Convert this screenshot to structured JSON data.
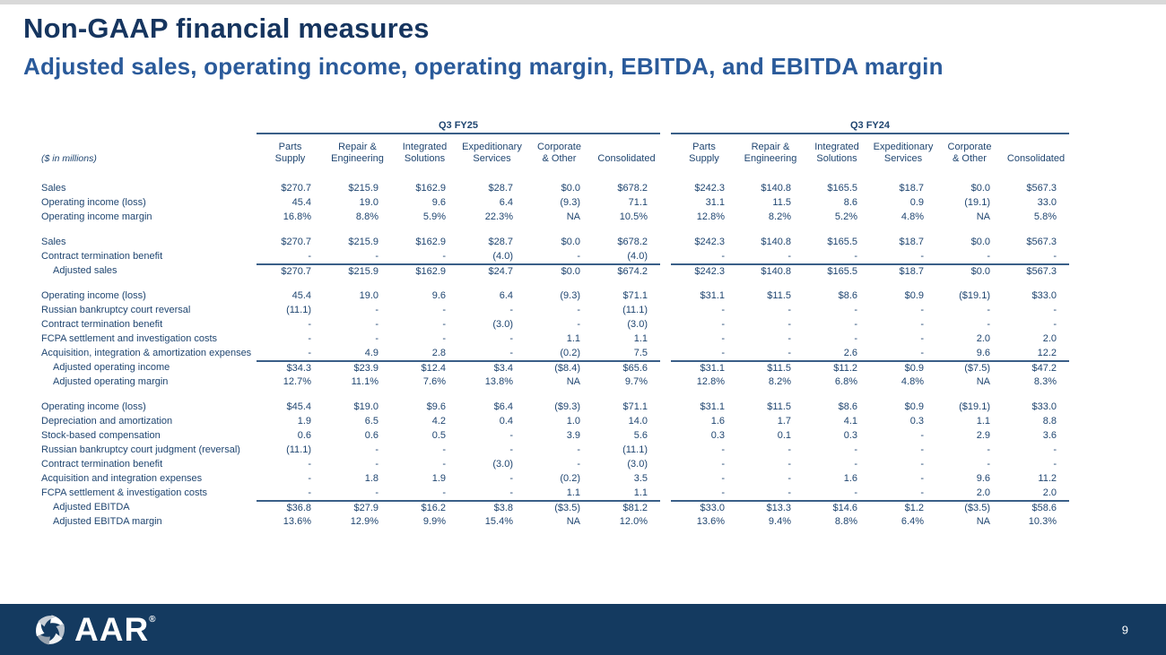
{
  "slide": {
    "title": "Non-GAAP financial measures",
    "subtitle": "Adjusted sales, operating income, operating margin, EBITDA, and EBITDA margin"
  },
  "colors": {
    "title_navy": "#16355f",
    "subtitle_blue": "#2a5a9a",
    "table_text": "#1f4570",
    "rule_line": "#3a5f88",
    "footer_bg": "#143a60"
  },
  "table": {
    "units_note": "($ in millions)",
    "groups": [
      {
        "title": "Q3 FY25",
        "columns": [
          "Parts\nSupply",
          "Repair &\nEngineering",
          "Integrated\nSolutions",
          "Expeditionary\nServices",
          "Corporate\n& Other",
          "Consolidated"
        ]
      },
      {
        "title": "Q3 FY24",
        "columns": [
          "Parts\nSupply",
          "Repair &\nEngineering",
          "Integrated\nSolutions",
          "Expeditionary\nServices",
          "Corporate\n& Other",
          "Consolidated"
        ]
      }
    ],
    "rows": [
      {
        "label": "Sales",
        "indent": false,
        "gap_before": false,
        "rule_above": false,
        "fy25": [
          "$270.7",
          "$215.9",
          "$162.9",
          "$28.7",
          "$0.0",
          "$678.2"
        ],
        "fy24": [
          "$242.3",
          "$140.8",
          "$165.5",
          "$18.7",
          "$0.0",
          "$567.3"
        ]
      },
      {
        "label": "Operating income (loss)",
        "indent": false,
        "gap_before": false,
        "rule_above": false,
        "fy25": [
          "45.4",
          "19.0",
          "9.6",
          "6.4",
          "(9.3)",
          "71.1"
        ],
        "fy24": [
          "31.1",
          "11.5",
          "8.6",
          "0.9",
          "(19.1)",
          "33.0"
        ]
      },
      {
        "label": "Operating income margin",
        "indent": false,
        "gap_before": false,
        "rule_above": false,
        "fy25": [
          "16.8%",
          "8.8%",
          "5.9%",
          "22.3%",
          "NA",
          "10.5%"
        ],
        "fy24": [
          "12.8%",
          "8.2%",
          "5.2%",
          "4.8%",
          "NA",
          "5.8%"
        ]
      },
      {
        "label": "Sales",
        "indent": false,
        "gap_before": true,
        "rule_above": false,
        "fy25": [
          "$270.7",
          "$215.9",
          "$162.9",
          "$28.7",
          "$0.0",
          "$678.2"
        ],
        "fy24": [
          "$242.3",
          "$140.8",
          "$165.5",
          "$18.7",
          "$0.0",
          "$567.3"
        ]
      },
      {
        "label": "Contract termination benefit",
        "indent": false,
        "gap_before": false,
        "rule_above": false,
        "fy25": [
          "-",
          "-",
          "-",
          "(4.0)",
          "-",
          "(4.0)"
        ],
        "fy24": [
          "-",
          "-",
          "-",
          "-",
          "-",
          "-"
        ]
      },
      {
        "label": "Adjusted sales",
        "indent": true,
        "gap_before": false,
        "rule_above": true,
        "fy25": [
          "$270.7",
          "$215.9",
          "$162.9",
          "$24.7",
          "$0.0",
          "$674.2"
        ],
        "fy24": [
          "$242.3",
          "$140.8",
          "$165.5",
          "$18.7",
          "$0.0",
          "$567.3"
        ]
      },
      {
        "label": "Operating income (loss)",
        "indent": false,
        "gap_before": true,
        "rule_above": false,
        "fy25": [
          "45.4",
          "19.0",
          "9.6",
          "6.4",
          "(9.3)",
          "$71.1"
        ],
        "fy24": [
          "$31.1",
          "$11.5",
          "$8.6",
          "$0.9",
          "($19.1)",
          "$33.0"
        ]
      },
      {
        "label": "Russian bankruptcy court reversal",
        "indent": false,
        "gap_before": false,
        "rule_above": false,
        "fy25": [
          "(11.1)",
          "-",
          "-",
          "-",
          "-",
          "(11.1)"
        ],
        "fy24": [
          "-",
          "-",
          "-",
          "-",
          "-",
          "-"
        ]
      },
      {
        "label": "Contract termination benefit",
        "indent": false,
        "gap_before": false,
        "rule_above": false,
        "fy25": [
          "-",
          "-",
          "-",
          "(3.0)",
          "-",
          "(3.0)"
        ],
        "fy24": [
          "-",
          "-",
          "-",
          "-",
          "-",
          "-"
        ]
      },
      {
        "label": "FCPA settlement and investigation costs",
        "indent": false,
        "gap_before": false,
        "rule_above": false,
        "fy25": [
          "-",
          "-",
          "-",
          "-",
          "1.1",
          "1.1"
        ],
        "fy24": [
          "-",
          "-",
          "-",
          "-",
          "2.0",
          "2.0"
        ]
      },
      {
        "label": "Acquisition, integration & amortization expenses",
        "indent": false,
        "gap_before": false,
        "rule_above": false,
        "fy25": [
          "-",
          "4.9",
          "2.8",
          "-",
          "(0.2)",
          "7.5"
        ],
        "fy24": [
          "-",
          "-",
          "2.6",
          "-",
          "9.6",
          "12.2"
        ]
      },
      {
        "label": "Adjusted operating income",
        "indent": true,
        "gap_before": false,
        "rule_above": true,
        "fy25": [
          "$34.3",
          "$23.9",
          "$12.4",
          "$3.4",
          "($8.4)",
          "$65.6"
        ],
        "fy24": [
          "$31.1",
          "$11.5",
          "$11.2",
          "$0.9",
          "($7.5)",
          "$47.2"
        ]
      },
      {
        "label": "Adjusted operating margin",
        "indent": true,
        "gap_before": false,
        "rule_above": false,
        "fy25": [
          "12.7%",
          "11.1%",
          "7.6%",
          "13.8%",
          "NA",
          "9.7%"
        ],
        "fy24": [
          "12.8%",
          "8.2%",
          "6.8%",
          "4.8%",
          "NA",
          "8.3%"
        ]
      },
      {
        "label": "Operating income (loss)",
        "indent": false,
        "gap_before": true,
        "rule_above": false,
        "fy25": [
          "$45.4",
          "$19.0",
          "$9.6",
          "$6.4",
          "($9.3)",
          "$71.1"
        ],
        "fy24": [
          "$31.1",
          "$11.5",
          "$8.6",
          "$0.9",
          "($19.1)",
          "$33.0"
        ]
      },
      {
        "label": "Depreciation and amortization",
        "indent": false,
        "gap_before": false,
        "rule_above": false,
        "fy25": [
          "1.9",
          "6.5",
          "4.2",
          "0.4",
          "1.0",
          "14.0"
        ],
        "fy24": [
          "1.6",
          "1.7",
          "4.1",
          "0.3",
          "1.1",
          "8.8"
        ]
      },
      {
        "label": "Stock-based compensation",
        "indent": false,
        "gap_before": false,
        "rule_above": false,
        "fy25": [
          "0.6",
          "0.6",
          "0.5",
          "-",
          "3.9",
          "5.6"
        ],
        "fy24": [
          "0.3",
          "0.1",
          "0.3",
          "-",
          "2.9",
          "3.6"
        ]
      },
      {
        "label": "Russian bankruptcy court judgment (reversal)",
        "indent": false,
        "gap_before": false,
        "rule_above": false,
        "fy25": [
          "(11.1)",
          "-",
          "-",
          "-",
          "-",
          "(11.1)"
        ],
        "fy24": [
          "-",
          "-",
          "-",
          "-",
          "-",
          "-"
        ]
      },
      {
        "label": "Contract termination benefit",
        "indent": false,
        "gap_before": false,
        "rule_above": false,
        "fy25": [
          "-",
          "-",
          "-",
          "(3.0)",
          "-",
          "(3.0)"
        ],
        "fy24": [
          "-",
          "-",
          "-",
          "-",
          "-",
          "-"
        ]
      },
      {
        "label": "Acquisition and integration expenses",
        "indent": false,
        "gap_before": false,
        "rule_above": false,
        "fy25": [
          "-",
          "1.8",
          "1.9",
          "-",
          "(0.2)",
          "3.5"
        ],
        "fy24": [
          "-",
          "-",
          "1.6",
          "-",
          "9.6",
          "11.2"
        ]
      },
      {
        "label": "FCPA settlement & investigation costs",
        "indent": false,
        "gap_before": false,
        "rule_above": false,
        "fy25": [
          "-",
          "-",
          "-",
          "-",
          "1.1",
          "1.1"
        ],
        "fy24": [
          "-",
          "-",
          "-",
          "-",
          "2.0",
          "2.0"
        ]
      },
      {
        "label": "Adjusted EBITDA",
        "indent": true,
        "gap_before": false,
        "rule_above": true,
        "fy25": [
          "$36.8",
          "$27.9",
          "$16.2",
          "$3.8",
          "($3.5)",
          "$81.2"
        ],
        "fy24": [
          "$33.0",
          "$13.3",
          "$14.6",
          "$1.2",
          "($3.5)",
          "$58.6"
        ]
      },
      {
        "label": "Adjusted EBITDA margin",
        "indent": true,
        "gap_before": false,
        "rule_above": false,
        "fy25": [
          "13.6%",
          "12.9%",
          "9.9%",
          "15.4%",
          "NA",
          "12.0%"
        ],
        "fy24": [
          "13.6%",
          "9.4%",
          "8.8%",
          "6.4%",
          "NA",
          "10.3%"
        ]
      }
    ]
  },
  "footer": {
    "logo_text": "AAR",
    "registered_mark": "®",
    "page_number": "9"
  }
}
